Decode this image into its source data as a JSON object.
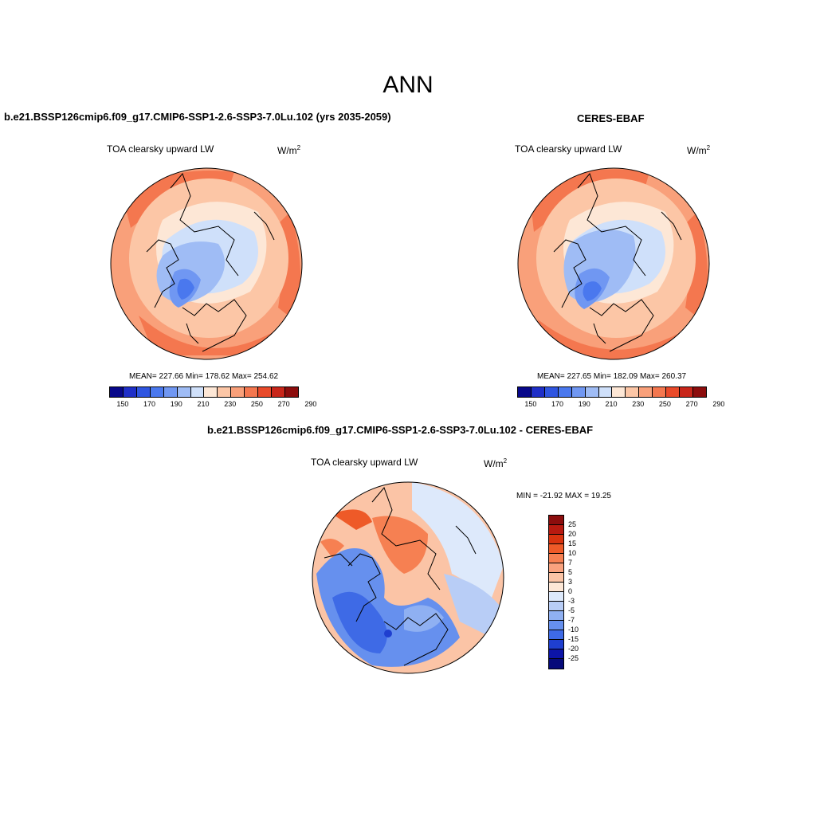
{
  "page_title": "ANN",
  "chart_data": [
    {
      "type": "heatmap",
      "title": "b.e21.BSSP126cmip6.f09_g17.CMIP6-SSP1-2.6-SSP3-7.0Lu.102 (yrs 2035-2059)",
      "variable": "TOA clearsky upward LW",
      "units": "W/m",
      "units_exp": "2",
      "projection": "north polar stereographic",
      "stats": "MEAN= 227.66  Min= 178.62  Max= 254.62",
      "colorbar_ticks": [
        "150",
        "170",
        "190",
        "210",
        "230",
        "250",
        "270",
        "290"
      ],
      "colorbar_colors": [
        "#08088a",
        "#1f2fc8",
        "#2f55e0",
        "#4a78ee",
        "#7097f2",
        "#9fbcf5",
        "#cfe0fa",
        "#fde7d6",
        "#fcc6a6",
        "#f9a07a",
        "#f4774f",
        "#e94a2a",
        "#c8261a",
        "#8c0d0d"
      ]
    },
    {
      "type": "heatmap",
      "title": "CERES-EBAF",
      "variable": "TOA clearsky upward LW",
      "units": "W/m",
      "units_exp": "2",
      "projection": "north polar stereographic",
      "stats": "MEAN= 227.65  Min= 182.09  Max= 260.37",
      "colorbar_ticks": [
        "150",
        "170",
        "190",
        "210",
        "230",
        "250",
        "270",
        "290"
      ],
      "colorbar_colors": [
        "#08088a",
        "#1f2fc8",
        "#2f55e0",
        "#4a78ee",
        "#7097f2",
        "#9fbcf5",
        "#cfe0fa",
        "#fde7d6",
        "#fcc6a6",
        "#f9a07a",
        "#f4774f",
        "#e94a2a",
        "#c8261a",
        "#8c0d0d"
      ]
    },
    {
      "type": "heatmap",
      "title": "b.e21.BSSP126cmip6.f09_g17.CMIP6-SSP1-2.6-SSP3-7.0Lu.102 - CERES-EBAF",
      "variable": "TOA clearsky upward LW",
      "units": "W/m",
      "units_exp": "2",
      "projection": "north polar stereographic",
      "stats": "MIN = -21.92 MAX =  19.25",
      "colorbar_ticks": [
        "25",
        "20",
        "15",
        "10",
        "7",
        "5",
        "3",
        "0",
        "-3",
        "-5",
        "-7",
        "-10",
        "-15",
        "-20",
        "-25"
      ],
      "colorbar_colors": [
        "#8c0d0d",
        "#b81a10",
        "#d9330f",
        "#ee5a28",
        "#f68052",
        "#f9a27e",
        "#fbc4a6",
        "#fde7d6",
        "#dde9fb",
        "#b8cdf6",
        "#8fb0f2",
        "#6690ee",
        "#3e6ae6",
        "#1f3fd0",
        "#0c14a8",
        "#060a7a"
      ]
    }
  ]
}
